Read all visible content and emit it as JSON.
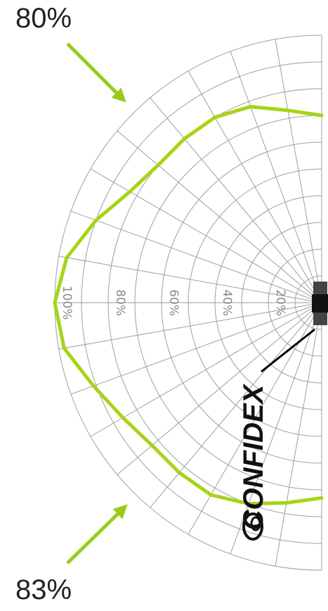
{
  "callouts": {
    "top": "80%",
    "bottom": "83%"
  },
  "brand": {
    "name": "CONFIDEX"
  },
  "colors": {
    "pattern": "#a6d417",
    "arrow": "#99cc1a",
    "grid": "#9e9e9e",
    "tick_text": "#8a8a8a",
    "antenna": "#111111"
  },
  "chart_data": {
    "type": "polar",
    "title": "",
    "radial_axis": {
      "min": 0,
      "max": 100,
      "unit": "%",
      "ticks": [
        "20%",
        "40%",
        "60%",
        "80%",
        "100%"
      ]
    },
    "angular_range_deg": [
      -90,
      90
    ],
    "angle_step_deg": 10,
    "grid": true,
    "series": [
      {
        "angle_deg": [
          -90,
          -80,
          -70,
          -60,
          -50,
          -40,
          -30,
          -20,
          -10,
          0,
          10,
          20,
          30,
          40,
          50,
          60,
          70,
          80,
          90
        ],
        "value_pct": [
          70,
          73,
          78,
          80,
          80,
          80,
          83,
          90,
          97,
          100,
          98,
          91,
          86,
          83,
          83,
          83,
          80,
          76,
          73
        ]
      }
    ],
    "annotations": [
      {
        "text": "80%",
        "position": "top-left"
      },
      {
        "text": "83%",
        "position": "bottom-left"
      }
    ]
  }
}
